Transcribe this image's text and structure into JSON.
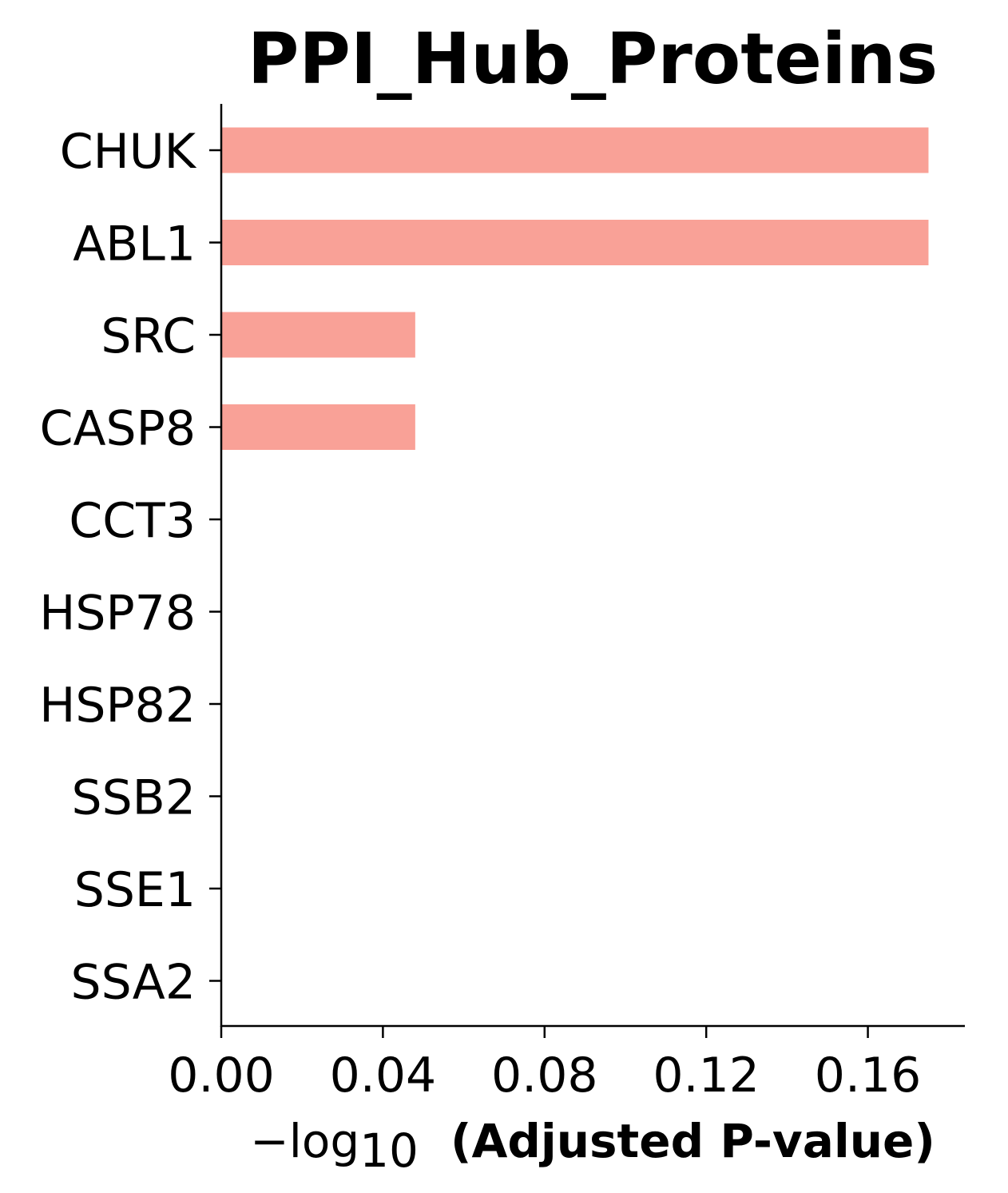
{
  "chart_data": {
    "type": "bar",
    "orientation": "horizontal",
    "title": "PPI_Hub_Proteins",
    "categories": [
      "CHUK",
      "ABL1",
      "SRC",
      "CASP8",
      "CCT3",
      "HSP78",
      "HSP82",
      "SSB2",
      "SSE1",
      "SSA2"
    ],
    "values": [
      0.175,
      0.175,
      0.048,
      0.048,
      0,
      0,
      0,
      0,
      0,
      0
    ],
    "xlabel_prefix": "−log",
    "xlabel_sub": "10",
    "xlabel_main": "(Adjusted P-value)",
    "xticks": [
      0.0,
      0.04,
      0.08,
      0.12,
      0.16
    ],
    "xtick_labels": [
      "0.00",
      "0.04",
      "0.08",
      "0.12",
      "0.16"
    ],
    "xlim": [
      0,
      0.184
    ],
    "bar_color": "#f9a197",
    "grid": false,
    "legend": "none"
  }
}
